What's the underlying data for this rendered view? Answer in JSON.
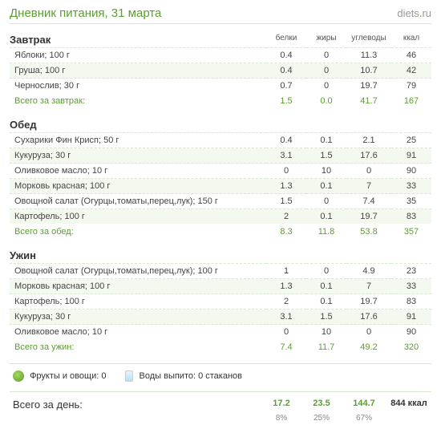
{
  "colors": {
    "accent": "#5a9e2e",
    "row_alt_bg": "#f4f9f0",
    "border": "#d8e8d0",
    "muted": "#888"
  },
  "header": {
    "title": "Дневник питания, 31 марта",
    "logo_pre": "diets",
    "logo_dot": ".",
    "logo_post": "ru"
  },
  "columns": {
    "protein": "белки",
    "fat": "жиры",
    "carbs": "углеводы",
    "kcal": "ккал"
  },
  "meals": [
    {
      "name": "Завтрак",
      "rows": [
        {
          "food": "Яблоки; 100 г",
          "p": "0.4",
          "f": "0",
          "c": "11.3",
          "k": "46"
        },
        {
          "food": "Груша; 100 г",
          "p": "0.4",
          "f": "0",
          "c": "10.7",
          "k": "42"
        },
        {
          "food": "Чернослив; 30 г",
          "p": "0.7",
          "f": "0",
          "c": "19.7",
          "k": "79"
        }
      ],
      "total_label": "Всего за завтрак:",
      "total": {
        "p": "1.5",
        "f": "0.0",
        "c": "41.7",
        "k": "167"
      }
    },
    {
      "name": "Обед",
      "rows": [
        {
          "food": "Сухарики Фин Крисп; 50 г",
          "p": "0.4",
          "f": "0.1",
          "c": "2.1",
          "k": "25"
        },
        {
          "food": "Кукуруза; 30 г",
          "p": "3.1",
          "f": "1.5",
          "c": "17.6",
          "k": "91"
        },
        {
          "food": "Оливковое масло; 10 г",
          "p": "0",
          "f": "10",
          "c": "0",
          "k": "90"
        },
        {
          "food": "Морковь красная; 100 г",
          "p": "1.3",
          "f": "0.1",
          "c": "7",
          "k": "33"
        },
        {
          "food": "Овощной салат (Огурцы,томаты,перец,лук); 150 г",
          "p": "1.5",
          "f": "0",
          "c": "7.4",
          "k": "35"
        },
        {
          "food": "Картофель; 100 г",
          "p": "2",
          "f": "0.1",
          "c": "19.7",
          "k": "83"
        }
      ],
      "total_label": "Всего за обед:",
      "total": {
        "p": "8.3",
        "f": "11.8",
        "c": "53.8",
        "k": "357"
      }
    },
    {
      "name": "Ужин",
      "rows": [
        {
          "food": "Овощной салат (Огурцы,томаты,перец,лук); 100 г",
          "p": "1",
          "f": "0",
          "c": "4.9",
          "k": "23"
        },
        {
          "food": "Морковь красная; 100 г",
          "p": "1.3",
          "f": "0.1",
          "c": "7",
          "k": "33"
        },
        {
          "food": "Картофель; 100 г",
          "p": "2",
          "f": "0.1",
          "c": "19.7",
          "k": "83"
        },
        {
          "food": "Кукуруза; 30 г",
          "p": "3.1",
          "f": "1.5",
          "c": "17.6",
          "k": "91"
        },
        {
          "food": "Оливковое масло; 10 г",
          "p": "0",
          "f": "10",
          "c": "0",
          "k": "90"
        }
      ],
      "total_label": "Всего за ужин:",
      "total": {
        "p": "7.4",
        "f": "11.7",
        "c": "49.2",
        "k": "320"
      }
    }
  ],
  "footer": {
    "fruits_label": "Фрукты и овощи: 0",
    "water_label": "Воды выпито: 0 стаканов"
  },
  "day_total": {
    "label": "Всего за день:",
    "p": "17.2",
    "f": "23.5",
    "c": "144.7",
    "k": "844 ккал",
    "pct_p": "8%",
    "pct_f": "25%",
    "pct_c": "67%"
  }
}
